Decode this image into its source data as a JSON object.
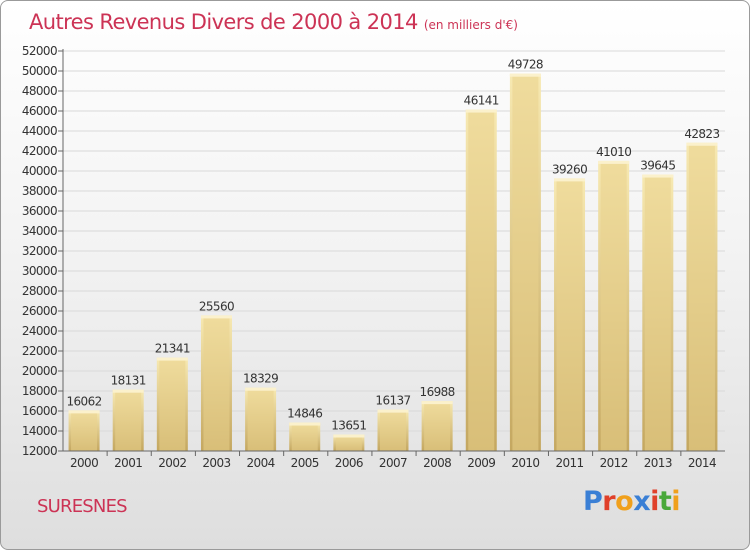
{
  "header": {
    "title": "Autres Revenus Divers de 2000 à 2014",
    "subtitle": "(en milliers d'€)"
  },
  "footer": {
    "city": "SURESNES",
    "logo": "Proxiti",
    "logo_letter_colors": [
      "#3a7fd5",
      "#e0402a",
      "#f0a01c",
      "#3a7fd5",
      "#e0402a",
      "#49a83a",
      "#f0a01c"
    ]
  },
  "colors": {
    "title": "#cc3355",
    "bar_light": "#f4e3a4",
    "bar_dark": "#c6a962",
    "grid": "#d9d9d9",
    "axis": "#666666"
  },
  "chart_data": {
    "type": "bar",
    "categories": [
      "2000",
      "2001",
      "2002",
      "2003",
      "2004",
      "2005",
      "2006",
      "2007",
      "2008",
      "2009",
      "2010",
      "2011",
      "2012",
      "2013",
      "2014"
    ],
    "values": [
      16062,
      18131,
      21341,
      25560,
      18329,
      14846,
      13651,
      16137,
      16988,
      46141,
      49728,
      39260,
      41010,
      39645,
      42823
    ],
    "data_labels": [
      "16062",
      "18131",
      "21341",
      "25560",
      "18329",
      "14846",
      "13651",
      "16137",
      "16988",
      "46141",
      "49728",
      "39260",
      "41010",
      "39645",
      "42823"
    ],
    "ylim": [
      12000,
      52000
    ],
    "yticks": [
      "12000",
      "14000",
      "16000",
      "18000",
      "20000",
      "22000",
      "24000",
      "26000",
      "28000",
      "30000",
      "32000",
      "34000",
      "36000",
      "38000",
      "40000",
      "42000",
      "44000",
      "46000",
      "48000",
      "50000",
      "52000"
    ],
    "grid": true,
    "legend": false
  }
}
